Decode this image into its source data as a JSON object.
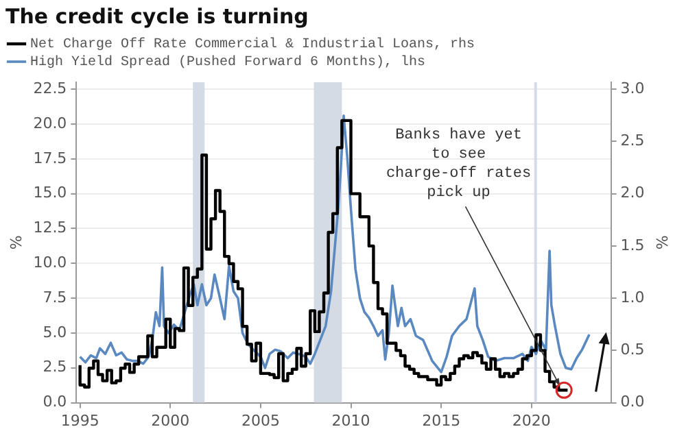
{
  "chart_data": {
    "type": "line",
    "title": "The credit cycle is turning",
    "ylabel": "%",
    "y2label": "%",
    "legend": "top left",
    "grid": "y",
    "xlim": [
      1994.8,
      2024.4
    ],
    "xticks": [
      1995,
      2000,
      2005,
      2010,
      2015,
      2020
    ],
    "ylim": [
      0,
      23
    ],
    "yticks": [
      {
        "value": 0,
        "label": "0.0"
      },
      {
        "value": 2.5,
        "label": "2.5"
      },
      {
        "value": 5,
        "label": "5.0"
      },
      {
        "value": 7.5,
        "label": "7.5"
      },
      {
        "value": 10,
        "label": "10.0"
      },
      {
        "value": 12.5,
        "label": "12.5"
      },
      {
        "value": 15,
        "label": "15.0"
      },
      {
        "value": 17.5,
        "label": "17.5"
      },
      {
        "value": 20,
        "label": "20.0"
      },
      {
        "value": 22.5,
        "label": "22.5"
      }
    ],
    "y2lim": [
      0,
      3.0667
    ],
    "y2ticks": [
      {
        "value": 0,
        "label": "0.0"
      },
      {
        "value": 0.5,
        "label": "0.5"
      },
      {
        "value": 1,
        "label": "1.0"
      },
      {
        "value": 1.5,
        "label": "1.5"
      },
      {
        "value": 2,
        "label": "2.0"
      },
      {
        "value": 2.5,
        "label": "2.5"
      },
      {
        "value": 3,
        "label": "3.0"
      }
    ],
    "bands": [
      {
        "axis": "x",
        "from": 2001.25,
        "to": 2001.9,
        "color": "#d5dbe4"
      },
      {
        "axis": "x",
        "from": 2007.95,
        "to": 2009.5,
        "color": "#d5dbe4"
      },
      {
        "axis": "x",
        "from": 2020.15,
        "to": 2020.3,
        "color": "#d5dbe4"
      }
    ],
    "annotations": [
      {
        "text": "Banks have yet to see charge-off rates pick up",
        "x": 2021.8,
        "y": 0.9
      }
    ],
    "series": [
      {
        "name": "Net Charge Off Rate Commercial & Industrial Loans, rhs",
        "type": "step",
        "axis": "y2",
        "color": "#000000",
        "x": [
          1995,
          1995.25,
          1995.5,
          1995.75,
          1996,
          1996.25,
          1996.5,
          1996.75,
          1997,
          1997.25,
          1997.5,
          1997.75,
          1998,
          1998.25,
          1998.5,
          1998.75,
          1999,
          1999.25,
          1999.5,
          1999.75,
          2000,
          2000.25,
          2000.5,
          2000.75,
          2001,
          2001.25,
          2001.5,
          2001.75,
          2002,
          2002.25,
          2002.5,
          2002.75,
          2003,
          2003.25,
          2003.5,
          2003.75,
          2004,
          2004.25,
          2004.5,
          2004.75,
          2005,
          2005.25,
          2005.5,
          2005.75,
          2006,
          2006.25,
          2006.5,
          2006.75,
          2007,
          2007.25,
          2007.5,
          2007.75,
          2008,
          2008.25,
          2008.5,
          2008.75,
          2009,
          2009.25,
          2009.5,
          2009.75,
          2010,
          2010.25,
          2010.5,
          2010.75,
          2011,
          2011.25,
          2011.5,
          2011.75,
          2012,
          2012.25,
          2012.5,
          2012.75,
          2013,
          2013.25,
          2013.5,
          2013.75,
          2014,
          2014.25,
          2014.5,
          2014.75,
          2015,
          2015.25,
          2015.5,
          2015.75,
          2016,
          2016.25,
          2016.5,
          2016.75,
          2017,
          2017.25,
          2017.5,
          2017.75,
          2018,
          2018.25,
          2018.5,
          2018.75,
          2019,
          2019.25,
          2019.5,
          2019.75,
          2020,
          2020.25,
          2020.5,
          2020.75,
          2021,
          2021.25,
          2021.5,
          2021.75,
          2022
        ],
        "values": [
          0.36,
          0.17,
          0.15,
          0.33,
          0.4,
          0.27,
          0.21,
          0.31,
          0.19,
          0.21,
          0.33,
          0.37,
          0.29,
          0.37,
          0.44,
          0.44,
          0.64,
          0.44,
          0.53,
          0.53,
          0.8,
          0.53,
          0.71,
          0.69,
          1.29,
          0.93,
          1.2,
          1.28,
          2.37,
          1.47,
          1.76,
          2.03,
          1.83,
          1.4,
          1.33,
          1.16,
          1.09,
          0.73,
          0.56,
          0.4,
          0.57,
          0.28,
          0.28,
          0.27,
          0.24,
          0.47,
          0.21,
          0.28,
          0.32,
          0.52,
          0.35,
          0.47,
          0.88,
          0.68,
          0.87,
          1.05,
          1.63,
          1.81,
          2.44,
          2.7,
          2.7,
          2.0,
          2.0,
          1.78,
          1.78,
          1.5,
          1.15,
          0.9,
          0.85,
          0.57,
          0.57,
          0.5,
          0.45,
          0.35,
          0.32,
          0.28,
          0.25,
          0.25,
          0.22,
          0.22,
          0.17,
          0.25,
          0.22,
          0.28,
          0.35,
          0.42,
          0.45,
          0.43,
          0.48,
          0.45,
          0.38,
          0.32,
          0.42,
          0.32,
          0.25,
          0.28,
          0.25,
          0.28,
          0.32,
          0.42,
          0.45,
          0.5,
          0.65,
          0.5,
          0.3,
          0.2,
          0.15,
          0.12,
          0.12
        ]
      },
      {
        "name": "High Yield Spread (Pushed Forward 6 Months), lhs",
        "type": "line",
        "axis": "y",
        "color": "#5a88c0",
        "x": [
          1995.0,
          1995.3,
          1995.6,
          1995.9,
          1996.1,
          1996.4,
          1996.7,
          1997.0,
          1997.3,
          1997.6,
          1997.9,
          1998.2,
          1998.5,
          1998.8,
          1999.0,
          1999.2,
          1999.4,
          1999.55,
          1999.65,
          1999.9,
          2000.2,
          2000.5,
          2000.8,
          2001.1,
          2001.3,
          2001.5,
          2001.75,
          2002.0,
          2002.25,
          2002.45,
          2002.75,
          2003.0,
          2003.25,
          2003.5,
          2003.75,
          2004.0,
          2004.3,
          2004.6,
          2005.0,
          2005.25,
          2005.5,
          2005.8,
          2006.1,
          2006.5,
          2006.8,
          2007.1,
          2007.5,
          2007.75,
          2008.0,
          2008.3,
          2008.6,
          2008.9,
          2009.1,
          2009.3,
          2009.45,
          2009.6,
          2009.8,
          2010.0,
          2010.25,
          2010.5,
          2010.75,
          2011.0,
          2011.25,
          2011.5,
          2011.75,
          2011.9,
          2012.1,
          2012.3,
          2012.6,
          2012.8,
          2013.0,
          2013.3,
          2013.6,
          2014.0,
          2014.5,
          2015.0,
          2015.3,
          2015.6,
          2016.0,
          2016.4,
          2016.85,
          2017.0,
          2017.3,
          2017.6,
          2018.0,
          2018.5,
          2019.0,
          2019.5,
          2019.8,
          2020.0,
          2020.25,
          2020.5,
          2020.8,
          2021.0,
          2021.1,
          2021.3,
          2021.6,
          2021.9,
          2022.2,
          2022.5,
          2022.8,
          2023.2
        ],
        "values": [
          3.3,
          2.9,
          3.4,
          3.2,
          3.9,
          3.5,
          4.3,
          3.4,
          3.6,
          3.1,
          3.0,
          3.0,
          2.8,
          3.3,
          4.5,
          6.5,
          5.5,
          9.7,
          5.5,
          5.0,
          5.6,
          5.2,
          6.5,
          7.8,
          8.5,
          7.0,
          8.5,
          7.0,
          7.5,
          9.2,
          7.5,
          6.0,
          9.8,
          8.0,
          7.5,
          5.0,
          4.2,
          3.8,
          3.3,
          2.5,
          3.5,
          3.8,
          3.7,
          3.2,
          3.6,
          3.5,
          3.3,
          2.8,
          3.5,
          4.5,
          5.5,
          8.0,
          11.0,
          14.0,
          17.0,
          20.6,
          17.6,
          13.9,
          9.6,
          7.5,
          6.5,
          6.1,
          5.5,
          4.8,
          5.2,
          3.1,
          5.0,
          8.4,
          5.5,
          6.8,
          5.5,
          6.0,
          4.8,
          4.5,
          3.0,
          2.2,
          3.3,
          4.8,
          5.5,
          6.0,
          8.2,
          5.5,
          4.5,
          3.3,
          3.0,
          3.2,
          3.2,
          3.5,
          3.0,
          4.0,
          3.5,
          4.5,
          3.8,
          10.9,
          7.0,
          5.5,
          3.5,
          2.5,
          2.4,
          3.2,
          3.8,
          4.9
        ]
      }
    ]
  }
}
